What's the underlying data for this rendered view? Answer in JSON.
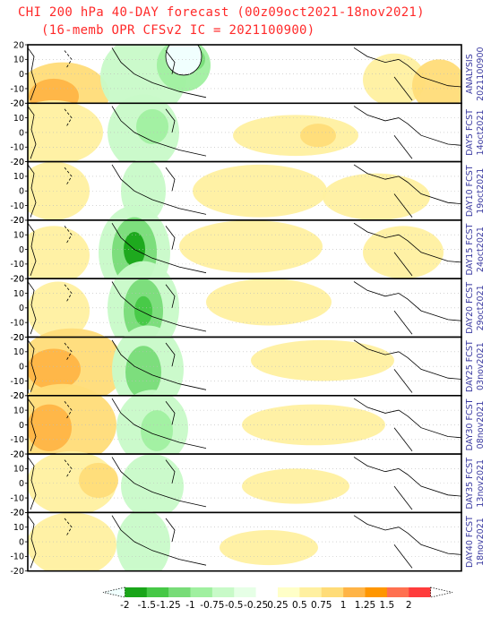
{
  "header": {
    "title_line1": "CHI 200 hPa 40-DAY forecast (00z09oct2021-18nov2021)",
    "title_line2": "(16-memb OPR CFSv2 IC = 2021100900)"
  },
  "chart_data": {
    "type": "heatmap",
    "y_ticks": [
      "20",
      "10",
      "0",
      "-10",
      "-20"
    ],
    "ylim": [
      -20,
      20
    ],
    "panels": [
      {
        "label": "ANALYSIS",
        "date": "2021100900"
      },
      {
        "label": "DAY5 FCST",
        "date": "14oct2021"
      },
      {
        "label": "DAY10 FCST",
        "date": "19oct2021"
      },
      {
        "label": "DAY15 FCST",
        "date": "24oct2021"
      },
      {
        "label": "DAY20 FCST",
        "date": "29oct2021"
      },
      {
        "label": "DAY25 FCST",
        "date": "03nov2021"
      },
      {
        "label": "DAY30 FCST",
        "date": "08nov2021"
      },
      {
        "label": "DAY35 FCST",
        "date": "13nov2021"
      },
      {
        "label": "DAY40 FCST",
        "date": "18nov2021"
      }
    ],
    "colorbar": {
      "ticks": [
        "-2",
        "-1.5",
        "-1.25",
        "-1",
        "-0.75",
        "-0.5",
        "-0.25",
        "0.25",
        "0.5",
        "0.75",
        "1",
        "1.25",
        "1.5",
        "2"
      ],
      "colors": [
        "#f0fffe",
        "#19a519",
        "#46c846",
        "#78dc78",
        "#a0f0a0",
        "#c8fac8",
        "#e6ffe6",
        "#ffffff",
        "#ffffc8",
        "#fff0a0",
        "#ffdc78",
        "#ffb446",
        "#ff9600",
        "#ff7050",
        "#ff3c3c",
        "#ffffff"
      ]
    }
  }
}
